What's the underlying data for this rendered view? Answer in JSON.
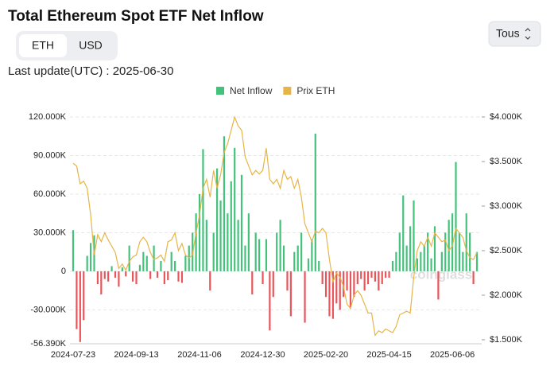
{
  "controls": {
    "units": [
      "ETH",
      "USD"
    ],
    "selected_unit": 0,
    "range": "Tous",
    "last_update": "Last update(UTC) : 2025-06-30"
  },
  "chart_data": {
    "type": "bar",
    "title": "Total Ethereum Spot ETF Net Inflow",
    "watermark": "coinglass",
    "grid": true,
    "categories": [
      "2024-07-23",
      null,
      null,
      null,
      null,
      null,
      null,
      null,
      null,
      null,
      null,
      null,
      null,
      null,
      null,
      null,
      null,
      null,
      "2024-09-13",
      null,
      null,
      null,
      null,
      null,
      null,
      null,
      null,
      null,
      null,
      null,
      null,
      null,
      null,
      null,
      null,
      null,
      "2024-11-06",
      null,
      null,
      null,
      null,
      null,
      null,
      null,
      null,
      null,
      null,
      null,
      null,
      null,
      null,
      null,
      null,
      null,
      "2024-12-30",
      null,
      null,
      null,
      null,
      null,
      null,
      null,
      null,
      null,
      null,
      null,
      null,
      null,
      null,
      null,
      null,
      null,
      "2025-02-20",
      null,
      null,
      null,
      null,
      null,
      null,
      null,
      null,
      null,
      null,
      null,
      null,
      null,
      null,
      null,
      null,
      null,
      "2025-04-15",
      null,
      null,
      null,
      null,
      null,
      null,
      null,
      null,
      null,
      null,
      null,
      null,
      null,
      null,
      null,
      null,
      null,
      "2025-06-06",
      null,
      null,
      null,
      null,
      null,
      null,
      null
    ],
    "series": [
      {
        "name": "Net Inflow",
        "type": "bar",
        "color": "#44c27b",
        "negative_color": "#e8555b",
        "values": [
          32000,
          -45000,
          -55000,
          -38000,
          12000,
          22000,
          28000,
          -10000,
          -18000,
          -6000,
          -8000,
          4000,
          -5000,
          -12000,
          3000,
          -4000,
          20000,
          -8000,
          -10000,
          5000,
          15000,
          12000,
          -6000,
          20000,
          -5000,
          8000,
          -10000,
          -7000,
          15000,
          8000,
          -8000,
          -9000,
          12000,
          20000,
          30000,
          45000,
          60000,
          95000,
          40000,
          -15000,
          30000,
          80000,
          55000,
          105000,
          45000,
          70000,
          96000,
          40000,
          75000,
          20000,
          45000,
          -18000,
          30000,
          25000,
          -10000,
          25000,
          -46000,
          -20000,
          30000,
          40000,
          20000,
          -15000,
          -35000,
          15000,
          20000,
          30000,
          -40000,
          10000,
          25000,
          107000,
          8000,
          -10000,
          -20000,
          -35000,
          -37000,
          -25000,
          -30000,
          -20000,
          -15000,
          -28000,
          -20000,
          -10000,
          -6000,
          -15000,
          -10000,
          -5000,
          -8000,
          -15000,
          -10000,
          -5000,
          -5000,
          8000,
          15000,
          30000,
          59000,
          20000,
          35000,
          55000,
          10000,
          15000,
          20000,
          30000,
          10000,
          35000,
          -22000,
          15000,
          30000,
          40000,
          45000,
          85000,
          30000,
          15000,
          45000,
          30000,
          -10000,
          15000
        ]
      },
      {
        "name": "Prix ETH",
        "type": "line",
        "axis": "y2",
        "color": "#e6b548",
        "values": [
          3480,
          3450,
          3250,
          3280,
          3200,
          2900,
          2450,
          2680,
          2600,
          2700,
          2620,
          2550,
          2480,
          2300,
          2350,
          2280,
          2380,
          2430,
          2450,
          2600,
          2650,
          2600,
          2480,
          2400,
          2420,
          2450,
          2380,
          2600,
          2620,
          2700,
          2500,
          2580,
          2450,
          2420,
          2450,
          2700,
          2900,
          3200,
          3300,
          3100,
          3400,
          3200,
          3350,
          3600,
          3700,
          3850,
          4000,
          3900,
          3850,
          3550,
          3450,
          3350,
          3400,
          3360,
          3400,
          3650,
          3300,
          3250,
          3300,
          3200,
          3400,
          3300,
          3330,
          3200,
          3300,
          3100,
          2800,
          2700,
          2600,
          2720,
          2700,
          2750,
          2700,
          2400,
          2150,
          2250,
          2200,
          2100,
          1900,
          1850,
          2000,
          2050,
          2000,
          1900,
          1800,
          1800,
          1550,
          1600,
          1580,
          1620,
          1600,
          1580,
          1650,
          1780,
          1800,
          1820,
          1800,
          2200,
          2500,
          2600,
          2550,
          2650,
          2550,
          2700,
          2650,
          2600,
          2620,
          2500,
          2550,
          2750,
          2700,
          2650,
          2500,
          2420,
          2400,
          2480
        ]
      }
    ],
    "ylim": [
      -56390,
      120000
    ],
    "yticks": [
      {
        "value": -56390,
        "label": "-56.390K"
      },
      {
        "value": -30000,
        "label": "-30.000K"
      },
      0,
      {
        "value": 30000,
        "label": "30.000K"
      },
      {
        "value": 60000,
        "label": "60.000K"
      },
      {
        "value": 90000,
        "label": "90.000K"
      },
      {
        "value": 120000,
        "label": "120.000K"
      }
    ],
    "y2lim": [
      1455,
      4000
    ],
    "y2ticks": [
      {
        "value": 1500,
        "label": "$1.500K"
      },
      {
        "value": 2000,
        "label": "$2.000K"
      },
      {
        "value": 2500,
        "label": "$2.500K"
      },
      {
        "value": 3000,
        "label": "$3.000K"
      },
      {
        "value": 3500,
        "label": "$3.500K"
      },
      {
        "value": 4000,
        "label": "$4.000K"
      }
    ]
  }
}
